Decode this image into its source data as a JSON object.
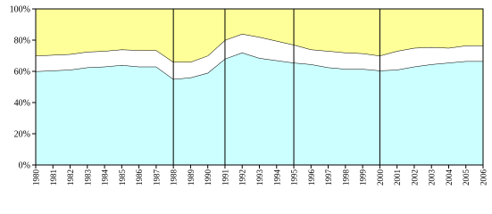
{
  "chart_data": {
    "type": "stacked-area",
    "categories": [
      "1980",
      "1981",
      "1982",
      "1983",
      "1984",
      "1985",
      "1986",
      "1987",
      "1988",
      "1989",
      "1990",
      "1991",
      "1992",
      "1993",
      "1994",
      "1995",
      "1996",
      "1997",
      "1998",
      "1999",
      "2000",
      "2001",
      "2002",
      "2003",
      "2004",
      "2005",
      "2006"
    ],
    "series": [
      {
        "color": "#ccffff",
        "values": [
          60,
          60.5,
          61,
          62.5,
          63,
          64,
          63,
          63,
          55,
          56,
          59,
          68,
          72,
          68.5,
          67,
          65.5,
          64.5,
          62.5,
          61.5,
          61.5,
          60.5,
          61,
          63,
          64.5,
          65.5,
          66.5,
          66.5
        ]
      },
      {
        "color": "#ffffff",
        "values": [
          10,
          10,
          10,
          10,
          10,
          10,
          10.5,
          10.5,
          11,
          10,
          11,
          12,
          12,
          13.5,
          12.5,
          11.5,
          9.5,
          10.5,
          10.5,
          10,
          9.5,
          12,
          12,
          11,
          9.5,
          10,
          10
        ]
      },
      {
        "color": "#ffff99",
        "values": [
          30,
          29.5,
          29,
          27.5,
          27,
          26,
          26.5,
          26.5,
          34,
          34,
          30,
          20,
          16,
          18,
          20.5,
          23,
          26,
          27,
          28,
          28.5,
          30,
          27,
          25,
          24.5,
          25,
          23.5,
          23.5
        ]
      }
    ],
    "ylim": [
      0,
      100
    ],
    "yticks": [
      {
        "value": 0,
        "label": "0%"
      },
      {
        "value": 20,
        "label": "20%"
      },
      {
        "value": 40,
        "label": "40%"
      },
      {
        "value": 60,
        "label": "60%"
      },
      {
        "value": 80,
        "label": "80%"
      },
      {
        "value": 100,
        "label": "100%"
      }
    ],
    "vlines": [
      "1988",
      "1991",
      "1995",
      "2000"
    ]
  }
}
